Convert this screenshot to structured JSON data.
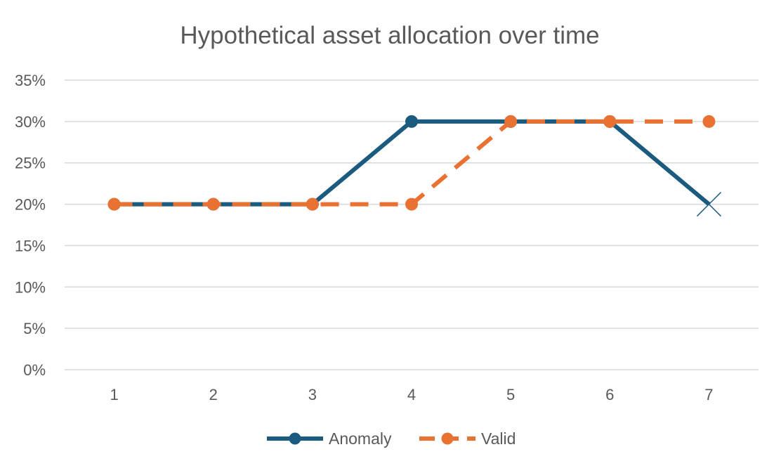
{
  "chart_data": {
    "type": "line",
    "title": "Hypothetical asset allocation over time",
    "xlabel": "",
    "ylabel": "",
    "categories": [
      "1",
      "2",
      "3",
      "4",
      "5",
      "6",
      "7"
    ],
    "ylim": [
      0,
      35
    ],
    "y_ticks": [
      "0%",
      "5%",
      "10%",
      "15%",
      "20%",
      "25%",
      "30%",
      "35%"
    ],
    "y_unit": "%",
    "grid": true,
    "legend_position": "bottom",
    "series": [
      {
        "name": "Anomaly",
        "values": [
          20,
          20,
          20,
          30,
          30,
          30,
          20
        ],
        "color": "#1b5b7f",
        "line_style": "solid",
        "marker": "circle",
        "last_point_marker": "x"
      },
      {
        "name": "Valid",
        "values": [
          20,
          20,
          20,
          20,
          30,
          30,
          30
        ],
        "color": "#e97132",
        "line_style": "dashed",
        "marker": "circle"
      }
    ]
  }
}
